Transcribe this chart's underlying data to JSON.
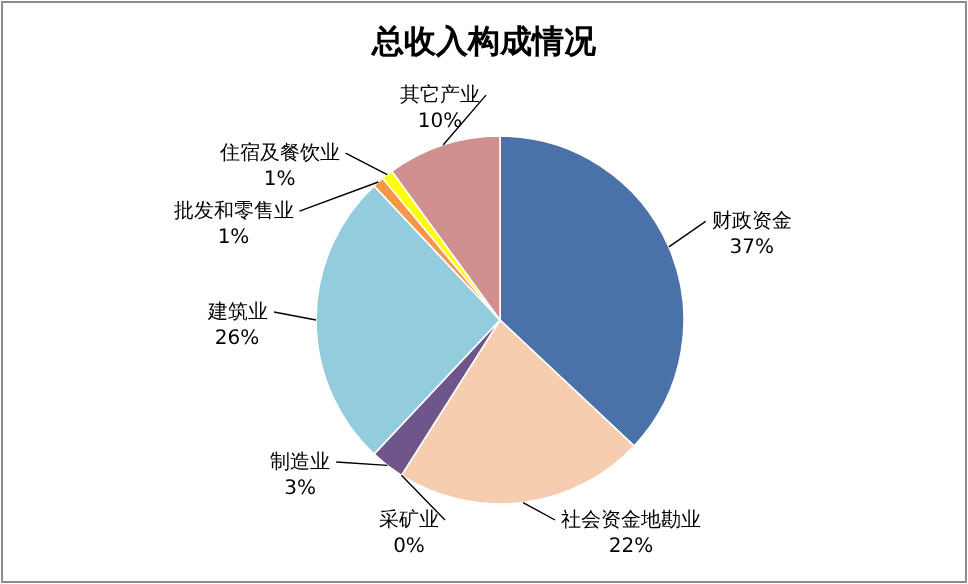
{
  "chart_data": {
    "type": "pie",
    "title": "总收入构成情况",
    "categories": [
      "财政资金",
      "社会资金地勘业",
      "采矿业",
      "制造业",
      "建筑业",
      "批发和零售业",
      "住宿及餐饮业",
      "其它产业"
    ],
    "values": [
      37,
      22,
      0,
      3,
      26,
      1,
      1,
      10
    ],
    "value_labels": [
      "37%",
      "22%",
      "0%",
      "3%",
      "26%",
      "1%",
      "1%",
      "10%"
    ],
    "colors": [
      "#4a72a8",
      "#f6cdae",
      null,
      "#6e558a",
      "#93cddd",
      "#f79646",
      "#ffff00",
      "#d09090"
    ]
  }
}
